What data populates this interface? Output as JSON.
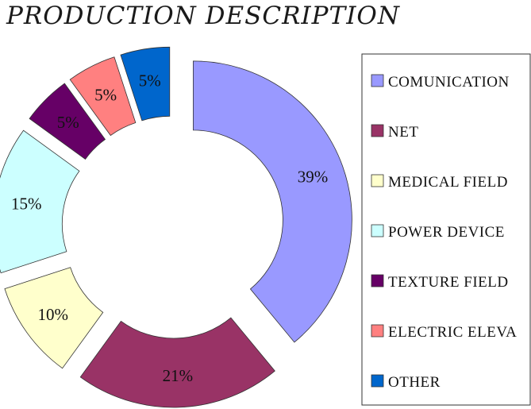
{
  "chart_data": {
    "type": "pie",
    "title": "PRODUCTION DESCRIPTION",
    "donut": true,
    "exploded": true,
    "legend_position": "right",
    "series": [
      {
        "name": "COMUNICATION",
        "value": 39,
        "label": "39%",
        "color": "#9999ff"
      },
      {
        "name": "NET",
        "value": 21,
        "label": "21%",
        "color": "#993366"
      },
      {
        "name": "MEDICAL  FIELD",
        "value": 10,
        "label": "10%",
        "color": "#ffffcc"
      },
      {
        "name": "POWER  DEVICE",
        "value": 15,
        "label": "15%",
        "color": "#ccffff"
      },
      {
        "name": "TEXTURE FIELD",
        "value": 5,
        "label": "5%",
        "color": "#660066"
      },
      {
        "name": "ELECTRIC ELEVA",
        "value": 5,
        "label": "5%",
        "color": "#ff8080"
      },
      {
        "name": "OTHER",
        "value": 5,
        "label": "5%",
        "color": "#0066cc"
      }
    ]
  }
}
